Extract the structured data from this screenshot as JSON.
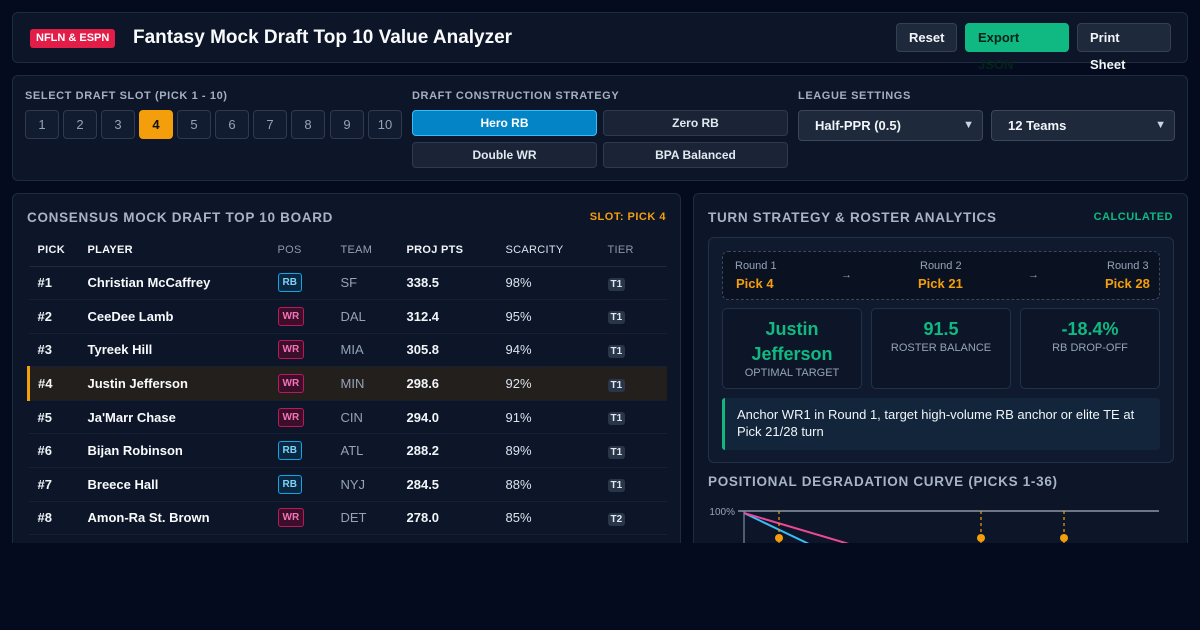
{
  "header": {
    "badge": "NFLN & ESPN",
    "title": "Fantasy Mock Draft Top 10 Value Analyzer",
    "buttons": {
      "reset": "Reset",
      "export": "Export JSON",
      "print": "Print Sheet"
    }
  },
  "controls": {
    "slot_label": "SELECT DRAFT SLOT (PICK 1 - 10)",
    "slots": [
      "1",
      "2",
      "3",
      "4",
      "5",
      "6",
      "7",
      "8",
      "9",
      "10"
    ],
    "active_slot": "4",
    "strategy_label": "DRAFT CONSTRUCTION STRATEGY",
    "strategies": [
      "Hero RB",
      "Zero RB",
      "Double WR",
      "BPA Balanced"
    ],
    "active_strategy": "Hero RB",
    "league_label": "LEAGUE SETTINGS",
    "scoring": "Half-PPR (0.5)",
    "teams": "12 Teams"
  },
  "board": {
    "title": "CONSENSUS MOCK DRAFT TOP 10 BOARD",
    "slot_tag": "SLOT: PICK 4",
    "columns": [
      "PICK",
      "PLAYER",
      "POS",
      "TEAM",
      "PROJ PTS",
      "SCARCITY",
      "TIER"
    ],
    "rows": [
      {
        "pick": "#1",
        "player": "Christian McCaffrey",
        "pos": "RB",
        "team": "SF",
        "proj": "338.5",
        "scarcity": "98%",
        "tier": "T1"
      },
      {
        "pick": "#2",
        "player": "CeeDee Lamb",
        "pos": "WR",
        "team": "DAL",
        "proj": "312.4",
        "scarcity": "95%",
        "tier": "T1"
      },
      {
        "pick": "#3",
        "player": "Tyreek Hill",
        "pos": "WR",
        "team": "MIA",
        "proj": "305.8",
        "scarcity": "94%",
        "tier": "T1"
      },
      {
        "pick": "#4",
        "player": "Justin Jefferson",
        "pos": "WR",
        "team": "MIN",
        "proj": "298.6",
        "scarcity": "92%",
        "tier": "T1"
      },
      {
        "pick": "#5",
        "player": "Ja'Marr Chase",
        "pos": "WR",
        "team": "CIN",
        "proj": "294.0",
        "scarcity": "91%",
        "tier": "T1"
      },
      {
        "pick": "#6",
        "player": "Bijan Robinson",
        "pos": "RB",
        "team": "ATL",
        "proj": "288.2",
        "scarcity": "89%",
        "tier": "T1"
      },
      {
        "pick": "#7",
        "player": "Breece Hall",
        "pos": "RB",
        "team": "NYJ",
        "proj": "284.5",
        "scarcity": "88%",
        "tier": "T1"
      },
      {
        "pick": "#8",
        "player": "Amon-Ra St. Brown",
        "pos": "WR",
        "team": "DET",
        "proj": "278.0",
        "scarcity": "85%",
        "tier": "T2"
      }
    ]
  },
  "analytics": {
    "title": "TURN STRATEGY & ROSTER ANALYTICS",
    "status": "CALCULATED",
    "rounds": [
      {
        "round": "Round 1",
        "pick": "Pick 4"
      },
      {
        "round": "Round 2",
        "pick": "Pick 21"
      },
      {
        "round": "Round 3",
        "pick": "Pick 28"
      }
    ],
    "arrow": "→",
    "stats": [
      {
        "value": "Justin Jefferson",
        "label": "OPTIMAL TARGET"
      },
      {
        "value": "91.5",
        "label": "ROSTER BALANCE"
      },
      {
        "value": "-18.4%",
        "label": "RB DROP-OFF"
      }
    ],
    "note": "Anchor WR1 in Round 1, target high-volume RB anchor or elite TE at Pick 21/28 turn",
    "curve_title": "POSITIONAL DEGRADATION CURVE (PICKS 1-36)",
    "curve_ytick": "100%"
  },
  "colors": {
    "accent": "#f59e0b",
    "success": "#10b981",
    "rb": "#38bdf8",
    "wr": "#ec4899"
  }
}
